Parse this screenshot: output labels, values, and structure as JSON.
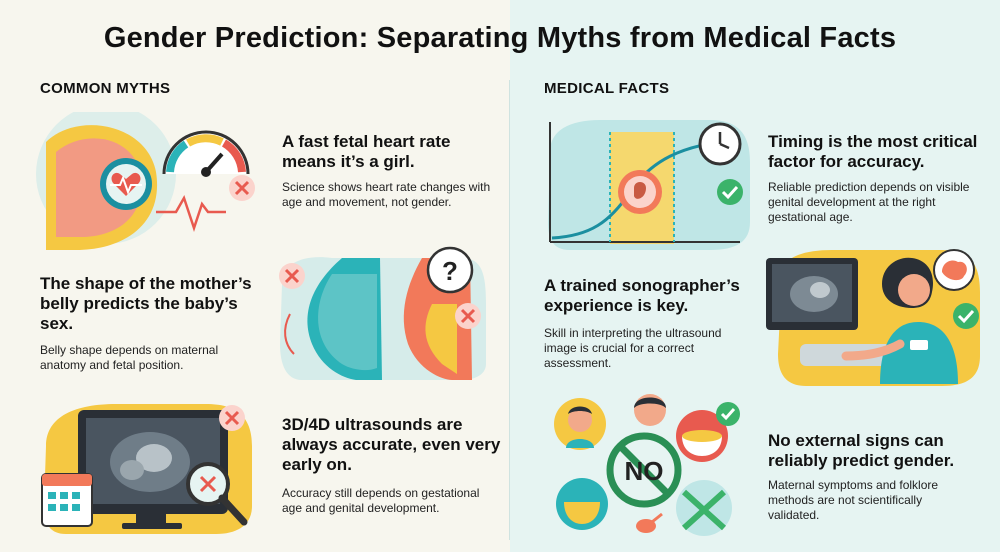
{
  "title": "Gender Prediction: Separating Myths from Medical Facts",
  "myths": {
    "section_title": "COMMON MYTHS",
    "items": [
      {
        "heading": "A fast fetal heart rate means it’s a girl.",
        "description": "Science shows heart rate changes with age and movement, not gender.",
        "verdict_icon": "cross-icon"
      },
      {
        "heading": "The shape of the mother’s belly predicts the baby’s sex.",
        "description": "Belly shape depends on maternal anatomy and fetal position.",
        "verdict_icon": "cross-icon"
      },
      {
        "heading": "3D/4D ultrasounds are always accurate, even very early on.",
        "description": "Accuracy still depends on gestational age and genital development.",
        "verdict_icon": "cross-icon"
      }
    ]
  },
  "facts": {
    "section_title": "MEDICAL FACTS",
    "items": [
      {
        "heading": "Timing is the most critical factor for accuracy.",
        "description": "Reliable prediction depends on visible genital development at the right gestational age.",
        "verdict_icon": "check-icon"
      },
      {
        "heading": "A trained sonographer’s experience is key.",
        "description": "Skill in interpreting the ultrasound image is crucial for a correct assessment.",
        "verdict_icon": "check-icon"
      },
      {
        "heading": "No external signs can reliably predict gender.",
        "description": "Maternal symptoms and folklore methods are not scientifically validated.",
        "verdict_icon": "check-icon"
      }
    ]
  },
  "no_sign_text": "NO",
  "colors": {
    "myth_x": "#e85a4f",
    "fact_check": "#3bb36a",
    "teal": "#2bb3b8",
    "yellow": "#f5c842",
    "coral": "#f2795a"
  }
}
